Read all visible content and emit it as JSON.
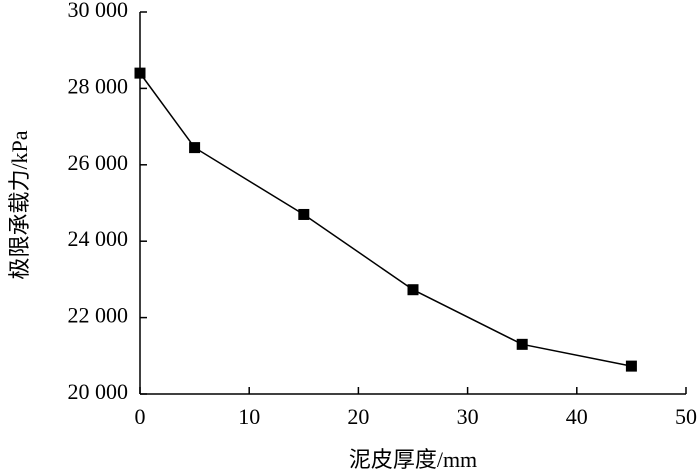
{
  "chart_data": {
    "type": "line",
    "x_label": "泥皮厚度/mm",
    "y_label": "极限承载力/kPa",
    "x": [
      0,
      5,
      15,
      25,
      35,
      45
    ],
    "series": [
      {
        "color": "#000000",
        "values": [
          28400,
          26450,
          24700,
          22730,
          21300,
          20730
        ]
      }
    ],
    "xlim": [
      0,
      50
    ],
    "xticks": [
      0,
      10,
      20,
      30,
      40,
      50
    ],
    "ylim": [
      20000,
      30000
    ],
    "yticks": [
      {
        "value": 20000,
        "label": "20 000"
      },
      {
        "value": 22000,
        "label": "22 000"
      },
      {
        "value": 24000,
        "label": "24 000"
      },
      {
        "value": 26000,
        "label": "26 000"
      },
      {
        "value": 28000,
        "label": "28 000"
      },
      {
        "value": 30000,
        "label": "30 000"
      }
    ],
    "grid": false
  }
}
